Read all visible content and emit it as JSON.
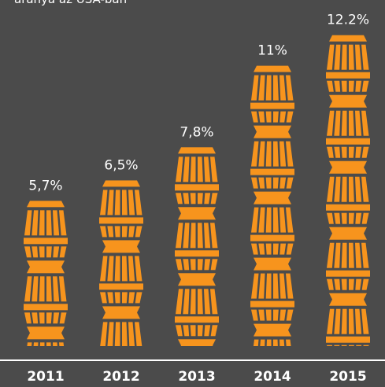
{
  "chart_data": {
    "type": "bar",
    "title": "aránya az USA-ban",
    "categories": [
      "2011",
      "2012",
      "2013",
      "2014",
      "2015"
    ],
    "values": [
      5.7,
      6.5,
      7.8,
      11,
      12.2
    ],
    "value_labels": [
      "5,7%",
      "6,5%",
      "7,8%",
      "11%",
      "12.2%"
    ],
    "color": "#f7941d"
  }
}
